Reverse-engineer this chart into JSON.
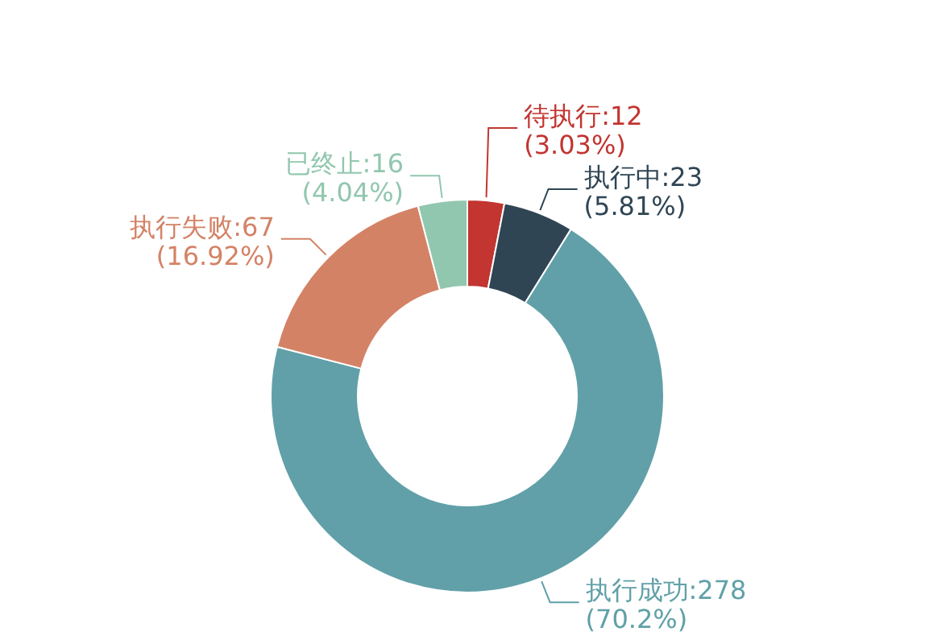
{
  "chart_data": {
    "type": "donut",
    "categories": [
      "待执行:12",
      "执行中:23",
      "执行成功:278",
      "执行失败:67",
      "已终止:16"
    ],
    "values": [
      3.03,
      5.81,
      70.2,
      16.92,
      4.04
    ],
    "value_labels": [
      "(3.03%)",
      "(5.81%)",
      "(70.2%)",
      "(16.92%)",
      "(4.04%)"
    ],
    "colors": [
      "#c23531",
      "#2f4554",
      "#61a0a8",
      "#d48265",
      "#91c7ae"
    ]
  }
}
